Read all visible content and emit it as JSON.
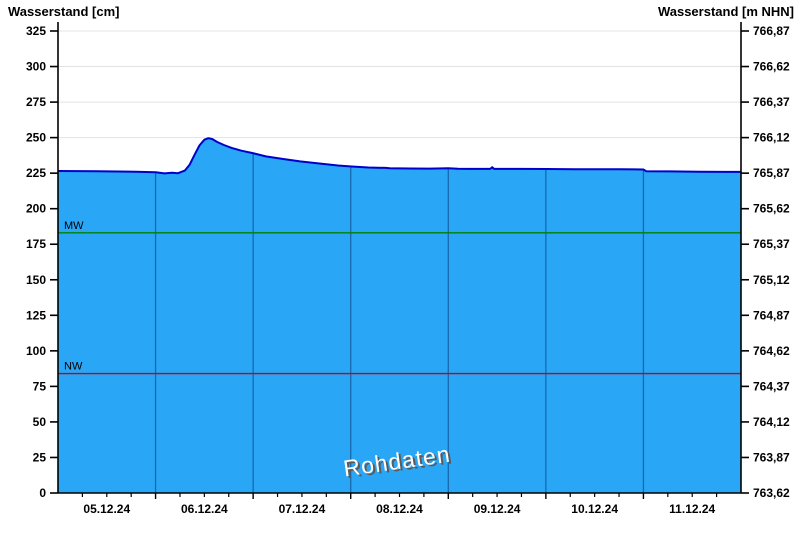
{
  "titles": {
    "left": "Wasserstand [cm]",
    "right": "Wasserstand [m NHN]"
  },
  "chart_data": {
    "type": "area",
    "title": "",
    "watermark": "Rohdaten",
    "x_axis": {
      "unit": "date",
      "days_shown": 7,
      "minor_ticks_per_day": 4,
      "day_labels": [
        "05.12.24",
        "06.12.24",
        "07.12.24",
        "08.12.24",
        "09.12.24",
        "10.12.24",
        "11.12.24"
      ]
    },
    "y_axis_left": {
      "label": "Wasserstand [cm]",
      "min": 0,
      "max": 325,
      "step": 25,
      "ticks": [
        0,
        25,
        50,
        75,
        100,
        125,
        150,
        175,
        200,
        225,
        250,
        275,
        300,
        325
      ]
    },
    "y_axis_right": {
      "label": "Wasserstand [m NHN]",
      "ticks": [
        "763,62",
        "763,87",
        "764,12",
        "764,37",
        "764,62",
        "764,87",
        "765,12",
        "765,37",
        "765,62",
        "765,87",
        "766,12",
        "766,37",
        "766,62",
        "766,87"
      ]
    },
    "series": [
      {
        "name": "Wasserstand Rohdaten",
        "x_days": [
          0,
          0.4,
          0.8,
          1.0,
          1.09,
          1.17,
          1.23,
          1.3,
          1.35,
          1.4,
          1.45,
          1.5,
          1.54,
          1.58,
          1.63,
          1.7,
          1.78,
          1.88,
          1.99,
          2.13,
          2.3,
          2.48,
          2.69,
          2.87,
          3.01,
          3.18,
          3.36,
          3.4,
          3.61,
          3.81,
          4.0,
          4.1,
          4.22,
          4.43,
          4.45,
          4.47,
          4.74,
          5.01,
          5.3,
          5.56,
          5.76,
          6.0,
          6.03,
          6.27,
          6.58,
          6.84,
          7.0
        ],
        "values_cm": [
          226.5,
          226.4,
          226.0,
          225.6,
          224.8,
          225.3,
          225.0,
          226.8,
          231.0,
          238.0,
          244.5,
          248.5,
          249.6,
          249.0,
          247.0,
          244.8,
          242.8,
          240.8,
          239.2,
          236.8,
          235.0,
          233.3,
          231.7,
          230.4,
          229.7,
          229.0,
          228.7,
          228.4,
          228.3,
          228.2,
          228.4,
          228.1,
          228.0,
          228.0,
          229.2,
          228.0,
          228.0,
          227.9,
          227.7,
          227.7,
          227.7,
          227.6,
          226.3,
          226.2,
          226.0,
          225.9,
          225.9
        ]
      }
    ],
    "reference_lines": [
      {
        "label": "MW",
        "value_cm": 183,
        "color": "#008000"
      },
      {
        "label": "NW",
        "value_cm": 84,
        "color": "#d40000"
      }
    ],
    "colors": {
      "area_fill": "#2aa6f7",
      "line": "#0000cc",
      "grid": "#e3e3e3",
      "day_gridline": "#1769ad",
      "axis": "#000000",
      "watermark_fill": "#ffffff",
      "watermark_shadow": "#5a5a5a"
    }
  }
}
